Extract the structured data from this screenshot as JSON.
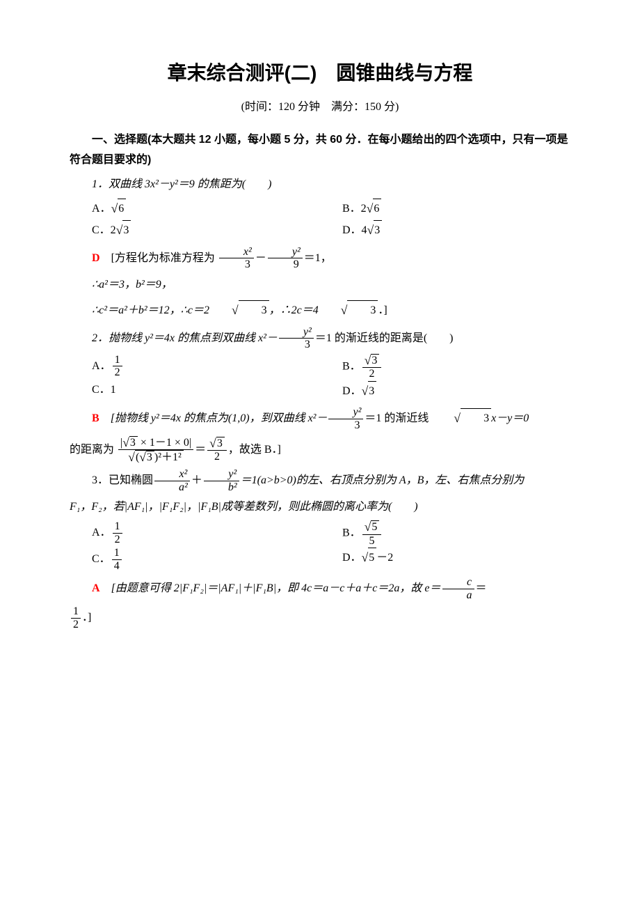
{
  "title": "章末综合测评(二)　圆锥曲线与方程",
  "subtitle": "(时间：120 分钟　满分：150 分)",
  "section1_header": "一、选择题(本大题共 12 小题，每小题 5 分，共 60 分．在每小题给出的四个选项中，只有一项是符合题目要求的)",
  "q1_stem": "1．双曲线 3x²－y²＝9 的焦距为(　　)",
  "q1_A": "A．",
  "q1_B": "B．2",
  "q1_C": "C．2",
  "q1_D": "D．4",
  "q1_ans": "D",
  "q1_exp1_pre": "[方程化为标准方程为",
  "q1_exp1_post": "＝1，",
  "q1_exp2": "∴a²＝3，b²＝9，",
  "q1_exp3_pre": "∴c²＝a²＋b²＝12，∴c＝2",
  "q1_exp3_mid": "，∴2c＝4",
  "q1_exp3_post": "．]",
  "q2_stem_pre": "2．抛物线 y²＝4x 的焦点到双曲线 x²－",
  "q2_stem_post": "＝1 的渐近线的距离是(　　)",
  "q2_A": "A．",
  "q2_B": "B．",
  "q2_C": "C．1",
  "q2_D": "D．",
  "q2_ans": "B",
  "q2_exp1_pre": "[抛物线 y²＝4x 的焦点为(1,0)，到双曲线 x²－",
  "q2_exp1_mid": "＝1 的渐近线 ",
  "q2_exp1_post": "x－y＝0",
  "q2_exp2_pre": "的距离为",
  "q2_exp2_post": "，故选 B．]",
  "q3_stem_pre": "3．已知椭圆",
  "q3_stem_mid": "＝1(a>b>0)的左、右顶点分别为 A，B，左、右焦点分别为",
  "q3_stem_line2": "F₁，F₂，若|AF₁|，|F₁F₂|，|F₁B|成等差数列，则此椭圆的离心率为(　　)",
  "q3_A": "A．",
  "q3_B": "B．",
  "q3_C": "C．",
  "q3_D": "D．",
  "q3_D_post": "－2",
  "q3_ans": "A",
  "q3_exp_pre": "[由题意可得 2|F₁F₂|＝|AF₁|＋|F₁B|，即 4c＝a－c＋a＋c＝2a，故 e＝",
  "q3_exp_eq": "＝",
  "q3_exp_post": "．]",
  "sqrt6": "6",
  "sqrt3": "3",
  "sqrt5": "5",
  "num1": "1",
  "num2": "2",
  "num3": "3",
  "num4": "4",
  "num5": "5",
  "num9": "9",
  "x2": "x²",
  "y2": "y²",
  "a2": "a²",
  "b2": "b²",
  "letc": "c",
  "leta": "a",
  "q2_frac_num": "|√3 × 1－1 × 0|",
  "q2_frac_den_pre": "(",
  "q2_frac_den_mid": ")²＋1²"
}
